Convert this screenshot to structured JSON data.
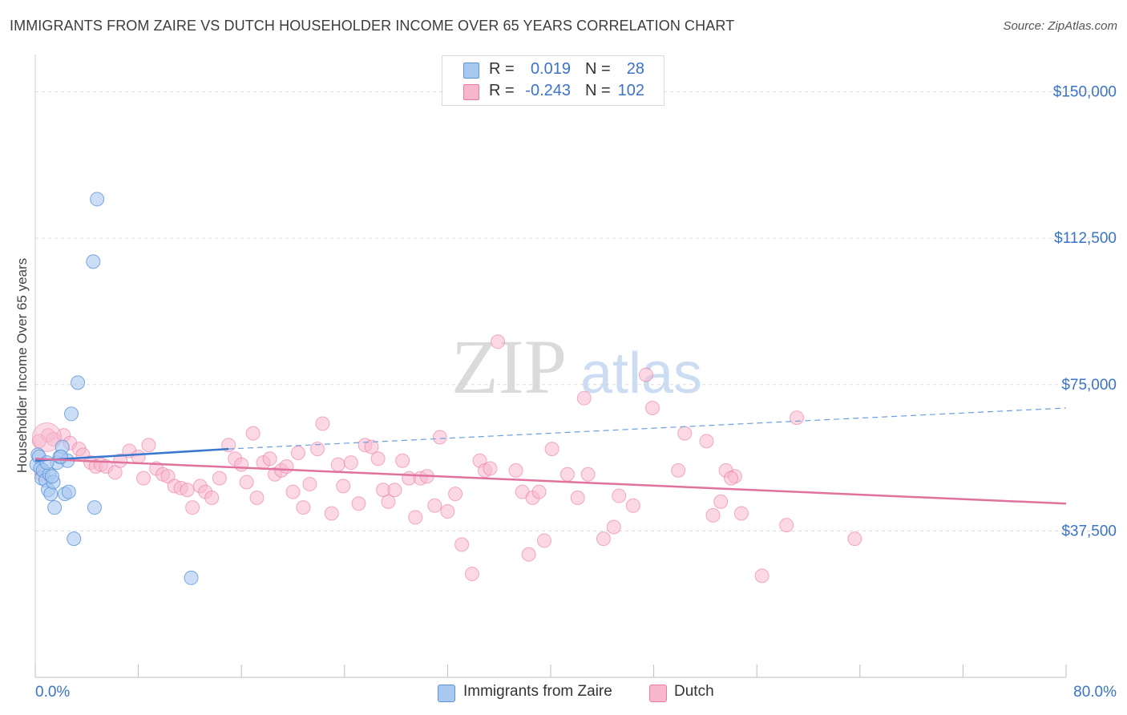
{
  "title": "IMMIGRANTS FROM ZAIRE VS DUTCH HOUSEHOLDER INCOME OVER 65 YEARS CORRELATION CHART",
  "source": "Source: ZipAtlas.com",
  "watermark": {
    "zip": "ZIP",
    "atlas": "atlas"
  },
  "legend": {
    "rows": [
      {
        "r_label": "R =",
        "r_value": "0.019",
        "n_label": "N =",
        "n_value": "28",
        "color": "#a9c8f0"
      },
      {
        "r_label": "R =",
        "r_value": "-0.243",
        "n_label": "N =",
        "n_value": "102",
        "color": "#f7b8cd"
      }
    ]
  },
  "bottom_legend": [
    {
      "label": "Immigrants from Zaire",
      "color": "#a9c8f0"
    },
    {
      "label": "Dutch",
      "color": "#f7b8cd"
    }
  ],
  "chart_data": {
    "type": "scatter",
    "title": "IMMIGRANTS FROM ZAIRE VS DUTCH HOUSEHOLDER INCOME OVER 65 YEARS CORRELATION CHART",
    "xlabel": "",
    "ylabel": "Householder Income Over 65 years",
    "xlim": [
      0,
      80
    ],
    "ylim": [
      0,
      157500
    ],
    "x_tick_labels": [
      "0.0%",
      "80.0%"
    ],
    "y_ticks": [
      37500,
      75000,
      112500,
      150000
    ],
    "y_tick_labels": [
      "$37,500",
      "$75,000",
      "$112,500",
      "$150,000"
    ],
    "grid": true,
    "legend_position": "top-center",
    "colors": {
      "zaire": "#5b93d8",
      "dutch": "#ea7aa3",
      "zaire_fill": "#a9c8f0",
      "dutch_fill": "#f7b8cd",
      "axis_label": "#3a73c8"
    },
    "series": [
      {
        "name": "Immigrants from Zaire",
        "points": [
          [
            0.1,
            54500
          ],
          [
            0.2,
            57000
          ],
          [
            0.3,
            56500
          ],
          [
            0.4,
            53500
          ],
          [
            0.5,
            51000
          ],
          [
            0.6,
            53000
          ],
          [
            0.8,
            50500
          ],
          [
            1.0,
            48000
          ],
          [
            1.1,
            52000
          ],
          [
            1.2,
            47000
          ],
          [
            1.4,
            50000
          ],
          [
            1.5,
            43500
          ],
          [
            1.7,
            55000
          ],
          [
            1.9,
            56500
          ],
          [
            2.1,
            59000
          ],
          [
            2.3,
            47000
          ],
          [
            2.5,
            55500
          ],
          [
            2.6,
            47500
          ],
          [
            2.8,
            67500
          ],
          [
            3.0,
            35500
          ],
          [
            3.3,
            75500
          ],
          [
            4.5,
            106500
          ],
          [
            4.6,
            43500
          ],
          [
            4.8,
            122500
          ],
          [
            12.1,
            25500
          ],
          [
            2.0,
            56500
          ],
          [
            0.9,
            55000
          ],
          [
            1.3,
            51500
          ]
        ],
        "trend": {
          "x": [
            0,
            15
          ],
          "y": [
            55500,
            58500
          ],
          "dashed_to": [
            80,
            69000
          ]
        }
      },
      {
        "name": "Dutch",
        "points": [
          [
            0.3,
            60500
          ],
          [
            0.5,
            52000
          ],
          [
            1.0,
            62000
          ],
          [
            1.4,
            61000
          ],
          [
            2.2,
            62000
          ],
          [
            2.7,
            60000
          ],
          [
            3.4,
            58500
          ],
          [
            3.7,
            57000
          ],
          [
            4.3,
            55000
          ],
          [
            4.7,
            54000
          ],
          [
            5.1,
            54500
          ],
          [
            5.5,
            54000
          ],
          [
            6.2,
            52500
          ],
          [
            6.6,
            55500
          ],
          [
            7.3,
            58000
          ],
          [
            8.0,
            56500
          ],
          [
            8.4,
            51000
          ],
          [
            8.8,
            59500
          ],
          [
            9.4,
            53500
          ],
          [
            9.9,
            52000
          ],
          [
            10.3,
            51500
          ],
          [
            10.8,
            49000
          ],
          [
            11.3,
            48500
          ],
          [
            11.8,
            48000
          ],
          [
            12.2,
            43500
          ],
          [
            12.8,
            49000
          ],
          [
            13.2,
            47500
          ],
          [
            13.7,
            46000
          ],
          [
            14.3,
            51000
          ],
          [
            15.0,
            59500
          ],
          [
            15.5,
            56000
          ],
          [
            16.0,
            54500
          ],
          [
            16.4,
            50000
          ],
          [
            16.9,
            62500
          ],
          [
            17.2,
            46000
          ],
          [
            17.7,
            55000
          ],
          [
            18.2,
            56000
          ],
          [
            18.6,
            52000
          ],
          [
            19.1,
            53000
          ],
          [
            19.5,
            54000
          ],
          [
            20.0,
            47500
          ],
          [
            20.4,
            57500
          ],
          [
            20.8,
            43500
          ],
          [
            21.3,
            49500
          ],
          [
            21.9,
            58500
          ],
          [
            22.3,
            65000
          ],
          [
            23.0,
            42000
          ],
          [
            23.5,
            54500
          ],
          [
            23.9,
            49000
          ],
          [
            24.5,
            55000
          ],
          [
            25.1,
            44500
          ],
          [
            25.6,
            59500
          ],
          [
            26.1,
            59000
          ],
          [
            26.6,
            56000
          ],
          [
            27.0,
            48000
          ],
          [
            27.4,
            45000
          ],
          [
            27.9,
            48000
          ],
          [
            28.5,
            55500
          ],
          [
            29.0,
            51000
          ],
          [
            29.5,
            41000
          ],
          [
            29.9,
            51000
          ],
          [
            30.4,
            51500
          ],
          [
            31.0,
            44000
          ],
          [
            31.4,
            61500
          ],
          [
            32.0,
            42500
          ],
          [
            32.6,
            47000
          ],
          [
            33.1,
            34000
          ],
          [
            33.9,
            26500
          ],
          [
            34.5,
            55500
          ],
          [
            34.9,
            53000
          ],
          [
            35.3,
            53500
          ],
          [
            35.9,
            86000
          ],
          [
            37.3,
            53000
          ],
          [
            37.8,
            47500
          ],
          [
            38.3,
            31500
          ],
          [
            38.6,
            46000
          ],
          [
            39.1,
            47500
          ],
          [
            39.5,
            35000
          ],
          [
            40.1,
            58500
          ],
          [
            41.3,
            52000
          ],
          [
            42.1,
            46000
          ],
          [
            42.6,
            71500
          ],
          [
            42.9,
            52000
          ],
          [
            44.1,
            35500
          ],
          [
            44.9,
            38500
          ],
          [
            45.3,
            46500
          ],
          [
            46.4,
            44000
          ],
          [
            47.4,
            77500
          ],
          [
            47.9,
            69000
          ],
          [
            49.9,
            53000
          ],
          [
            50.4,
            62500
          ],
          [
            52.1,
            60500
          ],
          [
            52.6,
            41500
          ],
          [
            53.2,
            45000
          ],
          [
            53.6,
            53000
          ],
          [
            54.3,
            51500
          ],
          [
            54.8,
            42000
          ],
          [
            56.4,
            26000
          ],
          [
            58.3,
            39000
          ],
          [
            59.1,
            66500
          ],
          [
            63.6,
            35500
          ],
          [
            54.0,
            51000
          ]
        ],
        "trend": {
          "x": [
            0,
            80
          ],
          "y": [
            56000,
            44500
          ]
        }
      }
    ]
  }
}
